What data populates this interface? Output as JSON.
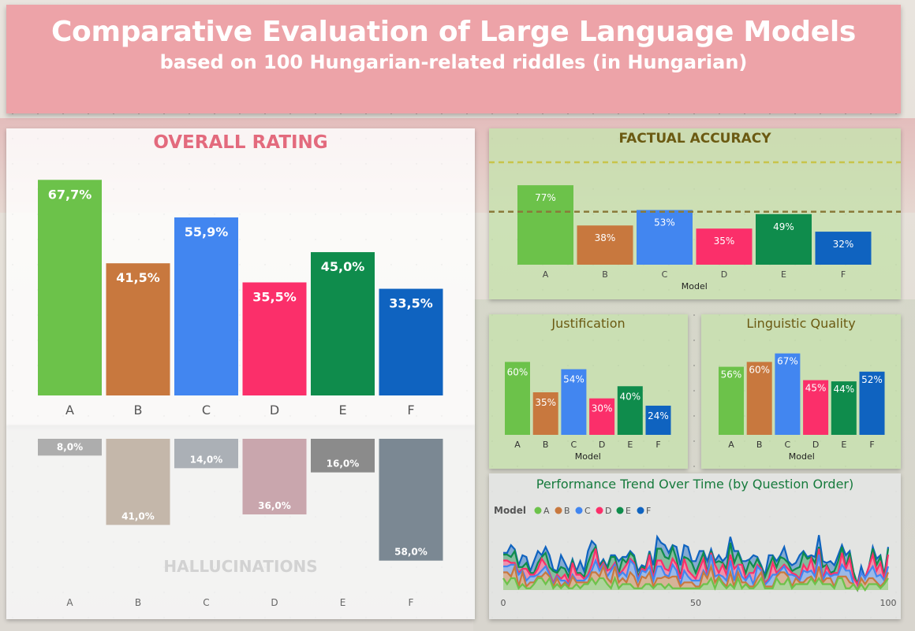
{
  "header": {
    "title": "Comparative Evaluation of Large Language Models",
    "subtitle": "based on 100 Hungarian-related riddles (in Hungarian)"
  },
  "colors": {
    "A": "#6cc24a",
    "B": "#c8783e",
    "C": "#4286f0",
    "D": "#fb2f6a",
    "E": "#0f8c4c",
    "F": "#0f63c0",
    "hallucination": [
      "#adadad",
      "#c4b7aa",
      "#abb0b6",
      "#c9a6ad",
      "#8b8b8b",
      "#7b8893"
    ],
    "header_bg": "#eda3a8"
  },
  "chart_data": [
    {
      "id": "overall",
      "type": "bar",
      "title": "OVERALL RATING",
      "categories": [
        "A",
        "B",
        "C",
        "D",
        "E",
        "F"
      ],
      "values": [
        67.7,
        41.5,
        55.9,
        35.5,
        45.0,
        33.5
      ],
      "labels": [
        "67,7%",
        "41,5%",
        "55,9%",
        "35,5%",
        "45,0%",
        "33,5%"
      ],
      "ylim": [
        0,
        70
      ]
    },
    {
      "id": "hallucinations",
      "type": "bar",
      "title": "HALLUCINATIONS",
      "orientation": "downward",
      "categories": [
        "A",
        "B",
        "C",
        "D",
        "E",
        "F"
      ],
      "values": [
        8.0,
        41.0,
        14.0,
        36.0,
        16.0,
        58.0
      ],
      "labels": [
        "8,0%",
        "41,0%",
        "14,0%",
        "36,0%",
        "16,0%",
        "58,0%"
      ],
      "ylim": [
        0,
        60
      ]
    },
    {
      "id": "factual",
      "type": "bar",
      "title": "FACTUAL ACCURACY",
      "xlabel": "Model",
      "categories": [
        "A",
        "B",
        "C",
        "D",
        "E",
        "F"
      ],
      "values": [
        77,
        38,
        53,
        35,
        49,
        32
      ],
      "labels": [
        "77%",
        "38%",
        "53%",
        "35%",
        "49%",
        "32%"
      ],
      "reference_lines": [
        100,
        51.3
      ],
      "ylim": [
        0,
        100
      ]
    },
    {
      "id": "justification",
      "type": "bar",
      "title": "Justification",
      "xlabel": "Model",
      "categories": [
        "A",
        "B",
        "C",
        "D",
        "E",
        "F"
      ],
      "values": [
        60,
        35,
        54,
        30,
        40,
        24
      ],
      "labels": [
        "60%",
        "35%",
        "54%",
        "30%",
        "40%",
        "24%"
      ],
      "ylim": [
        0,
        70
      ]
    },
    {
      "id": "linguistic",
      "type": "bar",
      "title": "Linguistic Quality",
      "xlabel": "Model",
      "categories": [
        "A",
        "B",
        "C",
        "D",
        "E",
        "F"
      ],
      "values": [
        56,
        60,
        67,
        45,
        44,
        52
      ],
      "labels": [
        "56%",
        "60%",
        "67%",
        "45%",
        "44%",
        "52%"
      ],
      "ylim": [
        0,
        70
      ]
    },
    {
      "id": "trend",
      "type": "area",
      "title": "Performance Trend Over Time (by Question Order)",
      "legend_title": "Model",
      "legend_position": "top-left",
      "xlim": [
        0,
        100
      ],
      "x_ticks": [
        "0",
        "50",
        "100"
      ],
      "series_names": [
        "A",
        "B",
        "C",
        "D",
        "E",
        "F"
      ]
    }
  ]
}
